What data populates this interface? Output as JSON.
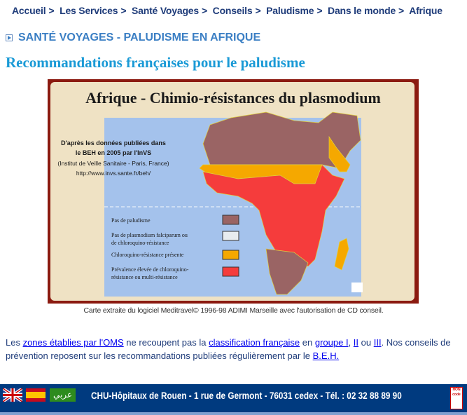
{
  "breadcrumb": [
    "Accueil",
    "Les Services",
    "Santé Voyages",
    "Conseils",
    "Paludisme",
    "Dans le monde",
    "Afrique"
  ],
  "breadcrumb_separator": ">",
  "section_title": "SANTÉ VOYAGES - PALUDISME EN AFRIQUE",
  "page_title": "Recommandations françaises pour le paludisme",
  "map": {
    "title": "Afrique - Chimio-résistances du plasmodium",
    "source_line1": "D'après les données publiées dans",
    "source_line2": "le BEH en 2005 par l'InVS",
    "source_line3": "(Institut de Veille Sanitaire - Paris, France)",
    "source_url": "http://www.invs.sante.fr/beh/",
    "legend": [
      {
        "label1": "Pas de paludisme",
        "label2": "",
        "color": "#9a6464"
      },
      {
        "label1": "Pas de plasmodium falciparum ou",
        "label2": "de chloroquino-résistance",
        "color": "#e8ecef"
      },
      {
        "label1": "Chloroquino-résistance présente",
        "label2": "",
        "color": "#f5a800"
      },
      {
        "label1": "Prévalence élevée de chloroquino-",
        "label2": "résistance ou multi-résistance",
        "color": "#f53c3c"
      }
    ],
    "ocean_color": "#a4c2ec",
    "frame_color": "#8b1a10"
  },
  "caption": "Carte extraite du logiciel Meditravel© 1996-98 ADIMI Marseille avec l'autorisation de CD conseil.",
  "paragraph": {
    "t1": "Les ",
    "l1": "zones établies par l'OMS",
    "t2": " ne recoupent pas la ",
    "l2": "classification française",
    "t3": " en ",
    "l3": "groupe I",
    "t4": ", ",
    "l4": "II",
    "t5": " ou ",
    "l5": "III",
    "t6": ". Nos conseils de prévention reposent sur les recommandations publiées régulièrement par le ",
    "l6": "B.E.H."
  },
  "footer": {
    "languages": [
      "English",
      "Español",
      "عربي"
    ],
    "address": "CHU-Hôpitaux de Rouen - 1 rue de Germont - 76031 cedex - Tél. : 02 32 88 89 90",
    "badge": "HON code"
  }
}
